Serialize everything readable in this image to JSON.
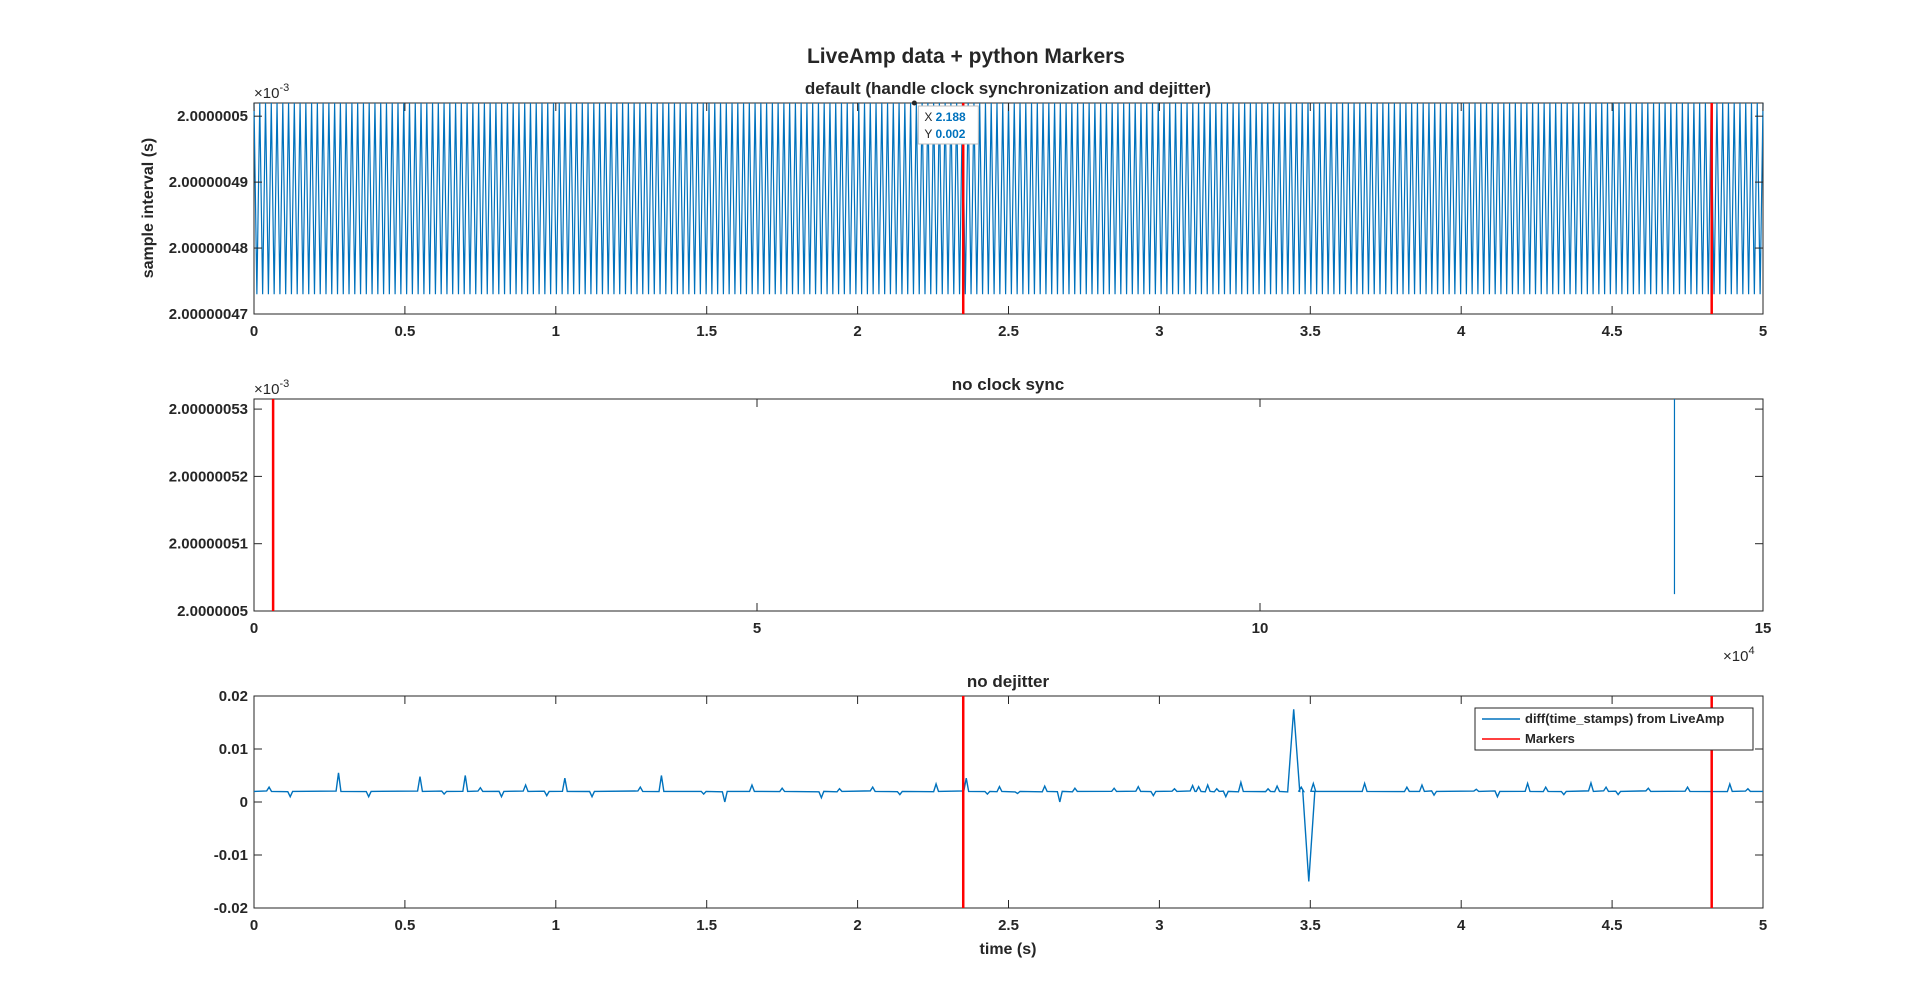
{
  "figure": {
    "title": "LiveAmp data + python Markers"
  },
  "colors": {
    "series": "#0072BD",
    "marker": "#FF0000",
    "axis": "#262626"
  },
  "chart_data": [
    {
      "type": "line",
      "title": "default (handle clock synchronization and dejitter)",
      "ylabel": "sample interval (s)",
      "xlabel": "",
      "xlim": [
        0,
        5
      ],
      "ylim": [
        2.00000047,
        2.000000502
      ],
      "y_exponent": "×10",
      "y_exponent_power": "-3",
      "x_exponent": "",
      "x_exponent_power": "",
      "xticks": [
        0,
        0.5,
        1,
        1.5,
        2,
        2.5,
        3,
        3.5,
        4,
        4.5,
        5
      ],
      "xtick_labels": [
        "0",
        "0.5",
        "1",
        "1.5",
        "2",
        "2.5",
        "3",
        "3.5",
        "4",
        "4.5",
        "5"
      ],
      "yticks": [
        2.00000047,
        2.00000048,
        2.00000049,
        2.0000005
      ],
      "ytick_labels": [
        "2.00000047",
        "2.00000048",
        "2.00000049",
        "2.0000005"
      ],
      "series": [
        {
          "name": "",
          "kind": "oscillation",
          "low": 2.000000473,
          "high": 2.000000502,
          "cycles": 262
        }
      ],
      "markers": [
        2.35,
        4.83
      ],
      "datatip": {
        "x_label": "X",
        "x_value": "2.188",
        "y_label": "Y",
        "y_value": "0.002",
        "x": 2.188,
        "y": 2.000000502
      }
    },
    {
      "type": "line",
      "title": "no clock sync",
      "ylabel": "",
      "xlabel": "",
      "xlim": [
        0,
        150000
      ],
      "ylim": [
        2.0000005,
        2.0000005315
      ],
      "y_exponent": "×10",
      "y_exponent_power": "-3",
      "x_exponent": "×10",
      "x_exponent_power": "4",
      "xticks": [
        0,
        50000,
        100000,
        150000
      ],
      "xtick_labels": [
        "0",
        "5",
        "10",
        "15"
      ],
      "yticks": [
        2.0000005,
        2.00000051,
        2.00000052,
        2.00000053
      ],
      "ytick_labels": [
        "2.0000005",
        "2.00000051",
        "2.00000052",
        "2.00000053"
      ],
      "series": [
        {
          "name": "",
          "kind": "points",
          "x": [
            141200,
            141200
          ],
          "y": [
            2.0000005025,
            2.0000005315
          ]
        }
      ],
      "markers": [
        1900
      ]
    },
    {
      "type": "line",
      "title": "no dejitter",
      "ylabel": "",
      "xlabel": "time (s)",
      "xlim": [
        0,
        5
      ],
      "ylim": [
        -0.02,
        0.02
      ],
      "y_exponent": "",
      "y_exponent_power": "",
      "x_exponent": "",
      "x_exponent_power": "",
      "xticks": [
        0,
        0.5,
        1,
        1.5,
        2,
        2.5,
        3,
        3.5,
        4,
        4.5,
        5
      ],
      "xtick_labels": [
        "0",
        "0.5",
        "1",
        "1.5",
        "2",
        "2.5",
        "3",
        "3.5",
        "4",
        "4.5",
        "5"
      ],
      "yticks": [
        -0.02,
        -0.01,
        0,
        0.01,
        0.02
      ],
      "ytick_labels": [
        "-0.02",
        "-0.01",
        "0",
        "0.01",
        "0.02"
      ],
      "series": [
        {
          "name": "diff(time_stamps) from LiveAmp",
          "kind": "spiky",
          "baseline": 0.002,
          "spikes": [
            [
              0.05,
              0.0008
            ],
            [
              0.12,
              -0.001
            ],
            [
              0.28,
              0.0035
            ],
            [
              0.38,
              -0.001
            ],
            [
              0.55,
              0.0028
            ],
            [
              0.63,
              -0.0005
            ],
            [
              0.7,
              0.003
            ],
            [
              0.75,
              0.0007
            ],
            [
              0.82,
              -0.001
            ],
            [
              0.9,
              0.0012
            ],
            [
              0.97,
              -0.0008
            ],
            [
              1.03,
              0.0025
            ],
            [
              1.12,
              -0.001
            ],
            [
              1.28,
              0.0008
            ],
            [
              1.35,
              0.003
            ],
            [
              1.49,
              -0.0005
            ],
            [
              1.56,
              -0.002
            ],
            [
              1.65,
              0.0012
            ],
            [
              1.75,
              0.0006
            ],
            [
              1.88,
              -0.0012
            ],
            [
              1.94,
              0.0005
            ],
            [
              2.05,
              0.0008
            ],
            [
              2.14,
              -0.0006
            ],
            [
              2.26,
              0.0014
            ],
            [
              2.36,
              0.0025
            ],
            [
              2.43,
              -0.0005
            ],
            [
              2.47,
              0.0009
            ],
            [
              2.53,
              -0.0004
            ],
            [
              2.62,
              0.001
            ],
            [
              2.67,
              -0.002
            ],
            [
              2.72,
              0.0006
            ],
            [
              2.85,
              0.0006
            ],
            [
              2.93,
              0.0009
            ],
            [
              2.98,
              -0.0008
            ],
            [
              3.05,
              0.0005
            ],
            [
              3.11,
              0.0011
            ],
            [
              3.13,
              0.0009
            ],
            [
              3.16,
              0.0012
            ],
            [
              3.19,
              0.0005
            ],
            [
              3.22,
              -0.001
            ],
            [
              3.27,
              0.0017
            ],
            [
              3.36,
              0.0005
            ],
            [
              3.39,
              0.001
            ],
            [
              3.47,
              0.0008
            ],
            [
              3.51,
              0.0015
            ],
            [
              3.68,
              0.0015
            ],
            [
              3.82,
              0.0008
            ],
            [
              3.87,
              0.0012
            ],
            [
              3.91,
              -0.0007
            ],
            [
              4.05,
              0.0004
            ],
            [
              4.12,
              -0.001
            ],
            [
              4.22,
              0.0015
            ],
            [
              4.28,
              0.0008
            ],
            [
              4.34,
              -0.0006
            ],
            [
              4.43,
              0.0016
            ],
            [
              4.48,
              0.0008
            ],
            [
              4.52,
              -0.0006
            ],
            [
              4.62,
              0.0006
            ],
            [
              4.75,
              0.0008
            ],
            [
              4.89,
              0.0014
            ],
            [
              4.95,
              0.0005
            ]
          ],
          "events": [
            {
              "x": 3.445,
              "y": 0.0175
            },
            {
              "x": 3.495,
              "y": -0.015
            }
          ]
        },
        {
          "name": "Markers",
          "kind": "markers"
        }
      ],
      "markers": [
        2.35,
        4.83
      ]
    }
  ]
}
